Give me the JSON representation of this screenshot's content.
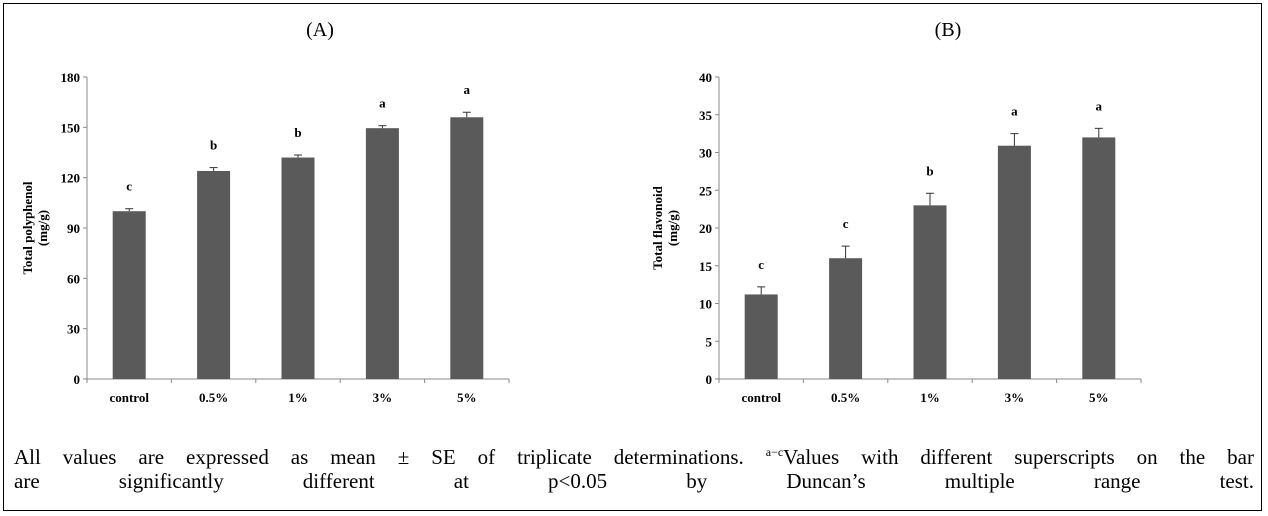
{
  "chart_data": [
    {
      "type": "bar",
      "title": "(A)",
      "ylabel": [
        "Total polyphenol",
        "(mg/g)"
      ],
      "categories": [
        "control",
        "0.5%",
        "1%",
        "3%",
        "5%"
      ],
      "values": [
        100,
        124,
        132,
        149.5,
        156
      ],
      "errors": [
        1.5,
        2,
        1.5,
        1.5,
        3
      ],
      "letters": [
        "c",
        "b",
        "b",
        "a",
        "a"
      ],
      "ylim": [
        0,
        180
      ],
      "yticks": [
        0,
        30,
        60,
        90,
        120,
        150,
        180
      ],
      "grid": false,
      "bar_color": "#5a5a5a"
    },
    {
      "type": "bar",
      "title": "(B)",
      "ylabel": [
        "Total flavonoid",
        "(mg/g)"
      ],
      "categories": [
        "control",
        "0.5%",
        "1%",
        "3%",
        "5%"
      ],
      "values": [
        11.2,
        16,
        23,
        30.9,
        32
      ],
      "errors": [
        1,
        1.6,
        1.6,
        1.6,
        1.2
      ],
      "letters": [
        "c",
        "c",
        "b",
        "a",
        "a"
      ],
      "ylim": [
        0,
        40
      ],
      "yticks": [
        0,
        5,
        10,
        15,
        20,
        25,
        30,
        35,
        40
      ],
      "grid": false,
      "bar_color": "#5a5a5a"
    }
  ],
  "caption": {
    "line1_pre": "All values are expressed as mean ± SE of triplicate determinations. ",
    "sup": "a−c",
    "line1_post": "Values with different superscripts on the bar",
    "line2": "are significantly different at p<0.05 by Duncan’s multiple range test."
  }
}
